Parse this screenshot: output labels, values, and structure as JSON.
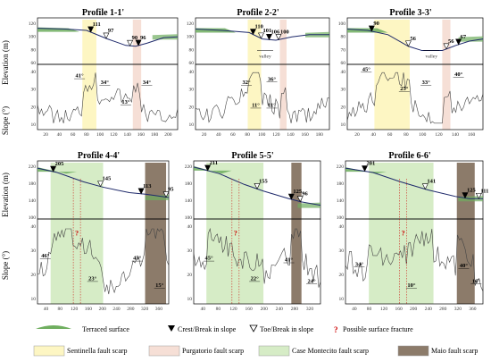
{
  "colors": {
    "sentinella": "#fdf6c3",
    "purgatorio": "#f6dfd6",
    "case_montecito": "#d6ecc6",
    "maio": "#8c7b6a",
    "terrace": "#6fae5f",
    "profile_line": "#1f2a6b"
  },
  "axis_labels": {
    "elevation": "Elevation (m)",
    "slope": "Slope (°)"
  },
  "profiles": [
    {
      "title": "Profile 1-1'",
      "x_ticks": [
        "20",
        "40",
        "60",
        "80",
        "100",
        "120",
        "140",
        "160",
        "180",
        "200"
      ],
      "elev_ticks": [
        "120",
        "100",
        "80",
        "60"
      ],
      "slope_ticks": [
        "40",
        "30",
        "20",
        "10"
      ],
      "point_labels": [
        "111",
        "97",
        "90",
        "96"
      ],
      "slope_labels": [
        "41°",
        "34°",
        "13°",
        "34°"
      ]
    },
    {
      "title": "Profile 2-2'",
      "x_ticks": [
        "20",
        "40",
        "60",
        "80",
        "100",
        "120",
        "140",
        "160",
        "180"
      ],
      "elev_ticks": [
        "120",
        "100",
        "80",
        "60"
      ],
      "slope_ticks": [
        "40",
        "30",
        "20",
        "10"
      ],
      "point_labels": [
        "110",
        "106",
        "101",
        "100"
      ],
      "valley": "valley",
      "slope_labels": [
        "32°",
        "36°",
        "11°",
        "11°"
      ]
    },
    {
      "title": "Profile 3-3'",
      "x_ticks": [
        "20",
        "40",
        "60",
        "80",
        "100",
        "120",
        "140",
        "160"
      ],
      "elev_ticks": [
        "100",
        "80",
        "70",
        "60"
      ],
      "slope_ticks": [
        "40",
        "30",
        "20",
        "10"
      ],
      "point_labels": [
        "90",
        "56",
        "56",
        "67"
      ],
      "valley": "valley",
      "slope_labels": [
        "45°",
        "25°",
        "33°",
        "40°"
      ]
    },
    {
      "title": "Profile 4-4'",
      "x_ticks": [
        "40",
        "80",
        "120",
        "160",
        "200",
        "240",
        "280",
        "320",
        "360"
      ],
      "elev_ticks": [
        "220",
        "180",
        "140",
        "100"
      ],
      "slope_ticks": [
        "40",
        "30",
        "20",
        "10"
      ],
      "point_labels": [
        "205",
        "145",
        "113",
        "95"
      ],
      "question": "?",
      "slope_labels": [
        "46°",
        "23°",
        "45°",
        "15°"
      ]
    },
    {
      "title": "Profile 5-5'",
      "x_ticks": [
        "40",
        "80",
        "120",
        "160",
        "200",
        "240",
        "280",
        "320"
      ],
      "elev_ticks": [
        "220",
        "180",
        "140",
        "100"
      ],
      "slope_ticks": [
        "40",
        "30",
        "20",
        "10"
      ],
      "point_labels": [
        "211",
        "155",
        "125",
        "96"
      ],
      "question": "?",
      "slope_labels": [
        "45°",
        "22°",
        "41°",
        "24°"
      ]
    },
    {
      "title": "Profile 6-6'",
      "x_ticks": [
        "40",
        "80",
        "120",
        "160",
        "200",
        "240",
        "280",
        "320",
        "360"
      ],
      "elev_ticks": [
        "220",
        "180",
        "140",
        "100"
      ],
      "slope_ticks": [
        "40",
        "30",
        "20",
        "10"
      ],
      "point_labels": [
        "201",
        "141",
        "125",
        "111"
      ],
      "question": "?",
      "slope_labels": [
        "34°",
        "10°",
        "40°",
        "16°"
      ]
    }
  ],
  "legend": {
    "terraced": "Terraced surface",
    "crest": "Crest/Break in slope",
    "toe": "Toe/Break in slope",
    "fracture": "Possible surface fracture",
    "sentinella": "Sentinella fault scarp",
    "purgatorio": "Purgatorio fault scarp",
    "case_montecito": "Case Montecito fault scarp",
    "maio": "Maio fault scarp"
  }
}
